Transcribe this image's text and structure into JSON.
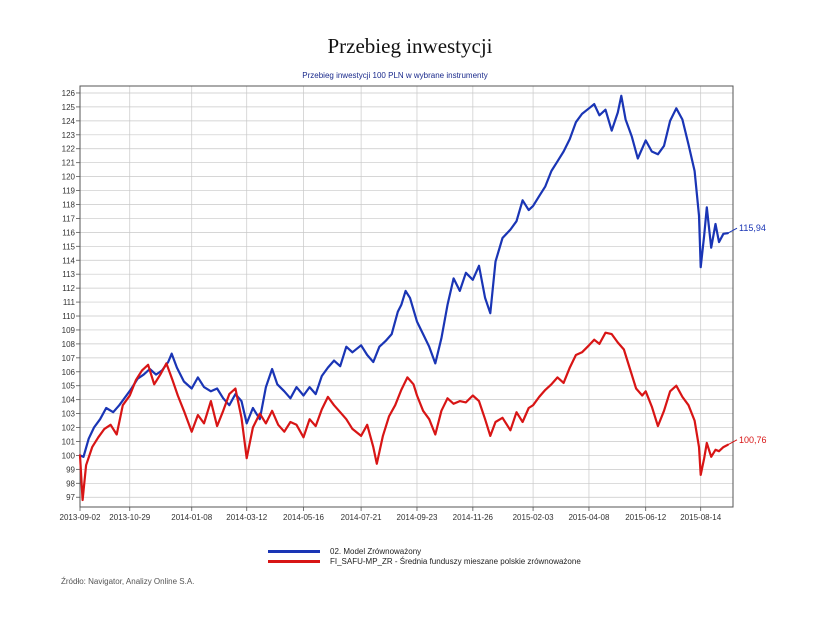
{
  "page": {
    "title": "Przebieg inwestycji",
    "subtitle": "Przebieg inwestycji 100 PLN w wybrane instrumenty",
    "source": "Źródło: Navigator, Analizy Online S.A."
  },
  "chart_data": {
    "type": "line",
    "title": "Przebieg inwestycji",
    "subtitle": "Przebieg inwestycji 100 PLN w wybrane instrumenty",
    "xlabel": "",
    "ylabel": "",
    "x_ticks": [
      "2013-09-02",
      "2013-10-29",
      "2014-01-08",
      "2014-03-12",
      "2014-05-16",
      "2014-07-21",
      "2014-09-23",
      "2014-11-26",
      "2015-02-03",
      "2015-04-08",
      "2015-06-12",
      "2015-08-14"
    ],
    "y_ticks": [
      97,
      98,
      99,
      100,
      101,
      102,
      103,
      104,
      105,
      106,
      107,
      108,
      109,
      110,
      111,
      112,
      113,
      114,
      115,
      116,
      117,
      118,
      119,
      120,
      121,
      122,
      123,
      124,
      125,
      126
    ],
    "ylim": [
      96.3,
      126.5
    ],
    "xlim": [
      "2013-09-02",
      "2015-09-20"
    ],
    "grid": true,
    "legend_position": "bottom",
    "series": [
      {
        "name": "02. Model Zrównoważony",
        "color": "#1a35b5",
        "end_label": "115,94",
        "points": [
          [
            "2013-09-02",
            100.0
          ],
          [
            "2013-09-06",
            99.9
          ],
          [
            "2013-09-12",
            101.2
          ],
          [
            "2013-09-18",
            102.0
          ],
          [
            "2013-09-25",
            102.6
          ],
          [
            "2013-10-02",
            103.4
          ],
          [
            "2013-10-10",
            103.1
          ],
          [
            "2013-10-17",
            103.6
          ],
          [
            "2013-10-24",
            104.2
          ],
          [
            "2013-10-31",
            104.8
          ],
          [
            "2013-11-07",
            105.5
          ],
          [
            "2013-11-14",
            105.8
          ],
          [
            "2013-11-21",
            106.2
          ],
          [
            "2013-11-28",
            105.8
          ],
          [
            "2013-12-05",
            106.1
          ],
          [
            "2013-12-12",
            106.7
          ],
          [
            "2013-12-16",
            107.3
          ],
          [
            "2013-12-22",
            106.3
          ],
          [
            "2013-12-30",
            105.3
          ],
          [
            "2014-01-08",
            104.8
          ],
          [
            "2014-01-15",
            105.6
          ],
          [
            "2014-01-22",
            104.9
          ],
          [
            "2014-01-30",
            104.6
          ],
          [
            "2014-02-06",
            104.8
          ],
          [
            "2014-02-13",
            104.1
          ],
          [
            "2014-02-20",
            103.6
          ],
          [
            "2014-02-27",
            104.4
          ],
          [
            "2014-03-06",
            103.9
          ],
          [
            "2014-03-12",
            102.3
          ],
          [
            "2014-03-19",
            103.4
          ],
          [
            "2014-03-27",
            102.6
          ],
          [
            "2014-04-03",
            104.9
          ],
          [
            "2014-04-10",
            106.2
          ],
          [
            "2014-04-16",
            105.1
          ],
          [
            "2014-04-24",
            104.6
          ],
          [
            "2014-05-01",
            104.1
          ],
          [
            "2014-05-08",
            104.9
          ],
          [
            "2014-05-16",
            104.3
          ],
          [
            "2014-05-23",
            104.9
          ],
          [
            "2014-05-30",
            104.4
          ],
          [
            "2014-06-06",
            105.7
          ],
          [
            "2014-06-13",
            106.3
          ],
          [
            "2014-06-20",
            106.8
          ],
          [
            "2014-06-27",
            106.4
          ],
          [
            "2014-07-04",
            107.8
          ],
          [
            "2014-07-11",
            107.4
          ],
          [
            "2014-07-21",
            107.9
          ],
          [
            "2014-07-28",
            107.2
          ],
          [
            "2014-08-04",
            106.7
          ],
          [
            "2014-08-11",
            107.8
          ],
          [
            "2014-08-18",
            108.2
          ],
          [
            "2014-08-25",
            108.7
          ],
          [
            "2014-09-01",
            110.3
          ],
          [
            "2014-09-05",
            110.8
          ],
          [
            "2014-09-10",
            111.8
          ],
          [
            "2014-09-15",
            111.3
          ],
          [
            "2014-09-23",
            109.6
          ],
          [
            "2014-09-30",
            108.7
          ],
          [
            "2014-10-07",
            107.8
          ],
          [
            "2014-10-14",
            106.6
          ],
          [
            "2014-10-21",
            108.4
          ],
          [
            "2014-10-28",
            110.8
          ],
          [
            "2014-11-04",
            112.7
          ],
          [
            "2014-11-11",
            111.8
          ],
          [
            "2014-11-18",
            113.1
          ],
          [
            "2014-11-26",
            112.6
          ],
          [
            "2014-12-03",
            113.6
          ],
          [
            "2014-12-10",
            111.3
          ],
          [
            "2014-12-16",
            110.2
          ],
          [
            "2014-12-22",
            113.9
          ],
          [
            "2014-12-30",
            115.6
          ],
          [
            "2015-01-08",
            116.2
          ],
          [
            "2015-01-15",
            116.8
          ],
          [
            "2015-01-22",
            118.3
          ],
          [
            "2015-01-29",
            117.6
          ],
          [
            "2015-02-03",
            117.9
          ],
          [
            "2015-02-10",
            118.6
          ],
          [
            "2015-02-17",
            119.3
          ],
          [
            "2015-02-24",
            120.4
          ],
          [
            "2015-03-03",
            121.1
          ],
          [
            "2015-03-10",
            121.8
          ],
          [
            "2015-03-17",
            122.7
          ],
          [
            "2015-03-24",
            123.9
          ],
          [
            "2015-03-31",
            124.5
          ],
          [
            "2015-04-08",
            124.9
          ],
          [
            "2015-04-14",
            125.2
          ],
          [
            "2015-04-20",
            124.4
          ],
          [
            "2015-04-27",
            124.8
          ],
          [
            "2015-05-04",
            123.3
          ],
          [
            "2015-05-11",
            124.6
          ],
          [
            "2015-05-15",
            125.8
          ],
          [
            "2015-05-20",
            124.1
          ],
          [
            "2015-05-27",
            122.9
          ],
          [
            "2015-06-03",
            121.3
          ],
          [
            "2015-06-12",
            122.6
          ],
          [
            "2015-06-19",
            121.8
          ],
          [
            "2015-06-26",
            121.6
          ],
          [
            "2015-07-03",
            122.2
          ],
          [
            "2015-07-10",
            124.0
          ],
          [
            "2015-07-17",
            124.9
          ],
          [
            "2015-07-24",
            124.1
          ],
          [
            "2015-07-31",
            122.3
          ],
          [
            "2015-08-07",
            120.4
          ],
          [
            "2015-08-12",
            117.2
          ],
          [
            "2015-08-14",
            113.5
          ],
          [
            "2015-08-18",
            115.8
          ],
          [
            "2015-08-21",
            117.8
          ],
          [
            "2015-08-26",
            114.9
          ],
          [
            "2015-08-31",
            116.6
          ],
          [
            "2015-09-04",
            115.3
          ],
          [
            "2015-09-09",
            115.9
          ],
          [
            "2015-09-14",
            115.94
          ]
        ]
      },
      {
        "name": "FI_SAFU-MP_ZR - Średnia funduszy mieszane polskie zrównoważone",
        "color": "#d81515",
        "end_label": "100,76",
        "points": [
          [
            "2013-09-02",
            100.0
          ],
          [
            "2013-09-05",
            96.8
          ],
          [
            "2013-09-09",
            99.3
          ],
          [
            "2013-09-16",
            100.6
          ],
          [
            "2013-09-23",
            101.3
          ],
          [
            "2013-09-30",
            101.9
          ],
          [
            "2013-10-07",
            102.2
          ],
          [
            "2013-10-14",
            101.5
          ],
          [
            "2013-10-21",
            103.6
          ],
          [
            "2013-10-29",
            104.3
          ],
          [
            "2013-11-05",
            105.4
          ],
          [
            "2013-11-12",
            106.1
          ],
          [
            "2013-11-19",
            106.5
          ],
          [
            "2013-11-26",
            105.1
          ],
          [
            "2013-12-03",
            105.8
          ],
          [
            "2013-12-10",
            106.6
          ],
          [
            "2013-12-17",
            105.4
          ],
          [
            "2013-12-23",
            104.3
          ],
          [
            "2013-12-30",
            103.2
          ],
          [
            "2014-01-08",
            101.7
          ],
          [
            "2014-01-15",
            102.9
          ],
          [
            "2014-01-22",
            102.3
          ],
          [
            "2014-01-30",
            103.9
          ],
          [
            "2014-02-06",
            102.1
          ],
          [
            "2014-02-13",
            103.2
          ],
          [
            "2014-02-20",
            104.4
          ],
          [
            "2014-02-27",
            104.8
          ],
          [
            "2014-03-06",
            102.7
          ],
          [
            "2014-03-12",
            99.8
          ],
          [
            "2014-03-19",
            102.0
          ],
          [
            "2014-03-27",
            103.0
          ],
          [
            "2014-04-03",
            102.3
          ],
          [
            "2014-04-10",
            103.2
          ],
          [
            "2014-04-17",
            102.2
          ],
          [
            "2014-04-24",
            101.7
          ],
          [
            "2014-05-01",
            102.4
          ],
          [
            "2014-05-08",
            102.2
          ],
          [
            "2014-05-16",
            101.3
          ],
          [
            "2014-05-23",
            102.6
          ],
          [
            "2014-05-30",
            102.1
          ],
          [
            "2014-06-06",
            103.3
          ],
          [
            "2014-06-13",
            104.2
          ],
          [
            "2014-06-20",
            103.6
          ],
          [
            "2014-06-27",
            103.1
          ],
          [
            "2014-07-04",
            102.6
          ],
          [
            "2014-07-11",
            101.9
          ],
          [
            "2014-07-21",
            101.4
          ],
          [
            "2014-07-28",
            102.2
          ],
          [
            "2014-08-04",
            100.6
          ],
          [
            "2014-08-08",
            99.4
          ],
          [
            "2014-08-15",
            101.4
          ],
          [
            "2014-08-22",
            102.8
          ],
          [
            "2014-08-29",
            103.6
          ],
          [
            "2014-09-05",
            104.7
          ],
          [
            "2014-09-12",
            105.6
          ],
          [
            "2014-09-19",
            105.1
          ],
          [
            "2014-09-23",
            104.3
          ],
          [
            "2014-09-30",
            103.2
          ],
          [
            "2014-10-07",
            102.6
          ],
          [
            "2014-10-14",
            101.5
          ],
          [
            "2014-10-21",
            103.2
          ],
          [
            "2014-10-28",
            104.1
          ],
          [
            "2014-11-04",
            103.7
          ],
          [
            "2014-11-11",
            103.9
          ],
          [
            "2014-11-18",
            103.8
          ],
          [
            "2014-11-26",
            104.3
          ],
          [
            "2014-12-03",
            103.9
          ],
          [
            "2014-12-10",
            102.6
          ],
          [
            "2014-12-16",
            101.4
          ],
          [
            "2014-12-22",
            102.4
          ],
          [
            "2014-12-30",
            102.7
          ],
          [
            "2015-01-08",
            101.8
          ],
          [
            "2015-01-15",
            103.1
          ],
          [
            "2015-01-22",
            102.4
          ],
          [
            "2015-01-29",
            103.4
          ],
          [
            "2015-02-03",
            103.6
          ],
          [
            "2015-02-10",
            104.2
          ],
          [
            "2015-02-17",
            104.7
          ],
          [
            "2015-02-24",
            105.1
          ],
          [
            "2015-03-03",
            105.6
          ],
          [
            "2015-03-10",
            105.2
          ],
          [
            "2015-03-17",
            106.3
          ],
          [
            "2015-03-24",
            107.2
          ],
          [
            "2015-03-31",
            107.4
          ],
          [
            "2015-04-08",
            107.9
          ],
          [
            "2015-04-14",
            108.3
          ],
          [
            "2015-04-20",
            108.0
          ],
          [
            "2015-04-27",
            108.8
          ],
          [
            "2015-05-04",
            108.7
          ],
          [
            "2015-05-11",
            108.1
          ],
          [
            "2015-05-18",
            107.6
          ],
          [
            "2015-05-25",
            106.2
          ],
          [
            "2015-06-01",
            104.8
          ],
          [
            "2015-06-08",
            104.3
          ],
          [
            "2015-06-12",
            104.6
          ],
          [
            "2015-06-19",
            103.5
          ],
          [
            "2015-06-26",
            102.1
          ],
          [
            "2015-07-03",
            103.2
          ],
          [
            "2015-07-10",
            104.6
          ],
          [
            "2015-07-17",
            105.0
          ],
          [
            "2015-07-24",
            104.2
          ],
          [
            "2015-07-31",
            103.6
          ],
          [
            "2015-08-07",
            102.5
          ],
          [
            "2015-08-12",
            100.6
          ],
          [
            "2015-08-14",
            98.6
          ],
          [
            "2015-08-18",
            99.8
          ],
          [
            "2015-08-21",
            100.9
          ],
          [
            "2015-08-26",
            99.9
          ],
          [
            "2015-08-31",
            100.4
          ],
          [
            "2015-09-04",
            100.3
          ],
          [
            "2015-09-09",
            100.6
          ],
          [
            "2015-09-14",
            100.76
          ]
        ]
      }
    ]
  }
}
